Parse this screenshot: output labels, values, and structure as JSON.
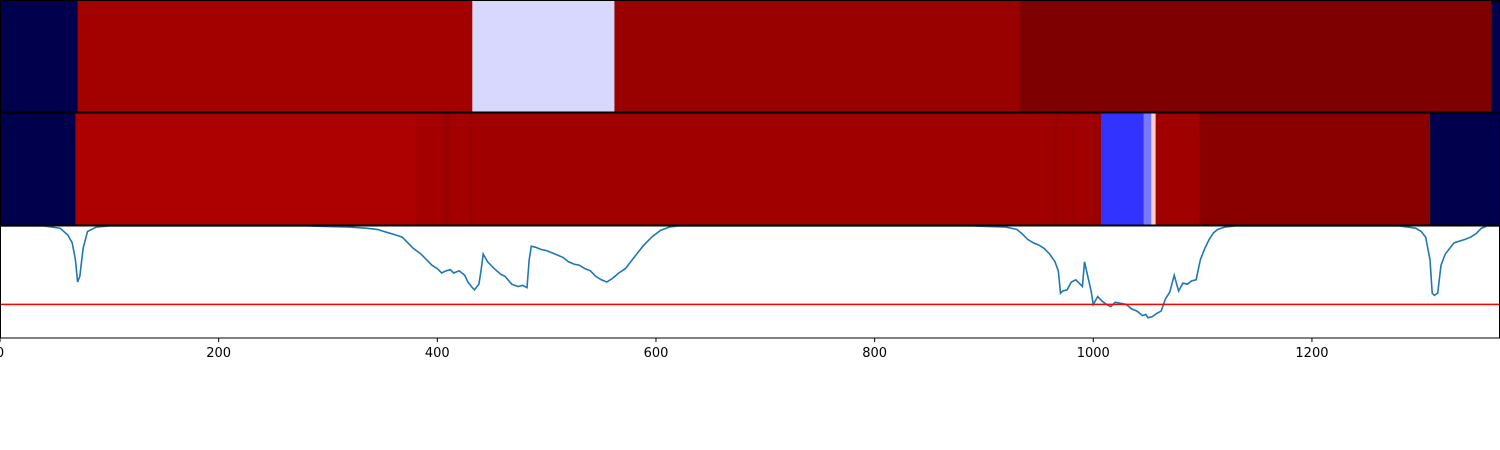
{
  "chart_data": {
    "type": "heatmap",
    "title": "",
    "xlabel": "",
    "ylabel": "",
    "xlim": [
      0,
      1372
    ],
    "x_ticks": [
      "0",
      "200",
      "400",
      "600",
      "800",
      "1000",
      "1200"
    ],
    "panels": [
      {
        "name": "",
        "colormap": "seismic",
        "segments": [
          {
            "start": 0,
            "end": 71,
            "color": "#00004d"
          },
          {
            "start": 71,
            "end": 432,
            "color": "#a30000"
          },
          {
            "start": 432,
            "end": 562,
            "color": "#d8d8ff"
          },
          {
            "start": 562,
            "end": 933,
            "color": "#990000"
          },
          {
            "start": 933,
            "end": 1364,
            "color": "#7f0000"
          },
          {
            "start": 1364,
            "end": 1372,
            "color": "#00004d"
          }
        ]
      },
      {
        "name": "",
        "colormap": "seismic",
        "segments": [
          {
            "start": 0,
            "end": 69,
            "color": "#00004d"
          },
          {
            "start": 69,
            "end": 381,
            "color": "#ad0000"
          },
          {
            "start": 381,
            "end": 406,
            "color": "#a50000"
          },
          {
            "start": 406,
            "end": 411,
            "color": "#990000"
          },
          {
            "start": 411,
            "end": 430,
            "color": "#a30000"
          },
          {
            "start": 430,
            "end": 432,
            "color": "#990000"
          },
          {
            "start": 432,
            "end": 964,
            "color": "#a10000"
          },
          {
            "start": 964,
            "end": 968,
            "color": "#990000"
          },
          {
            "start": 968,
            "end": 980,
            "color": "#a10000"
          },
          {
            "start": 980,
            "end": 983,
            "color": "#990000"
          },
          {
            "start": 983,
            "end": 1000,
            "color": "#a10000"
          },
          {
            "start": 1000,
            "end": 1007,
            "color": "#990000"
          },
          {
            "start": 1007,
            "end": 1046,
            "color": "#3333ff"
          },
          {
            "start": 1046,
            "end": 1053,
            "color": "#7777ff"
          },
          {
            "start": 1053,
            "end": 1057,
            "color": "#ffcccc"
          },
          {
            "start": 1057,
            "end": 1097,
            "color": "#a10000"
          },
          {
            "start": 1097,
            "end": 1308,
            "color": "#8a0000"
          },
          {
            "start": 1308,
            "end": 1372,
            "color": "#00004d"
          }
        ]
      },
      {
        "name": "",
        "series_type": "line",
        "line_color": "#1f77b4",
        "threshold": {
          "value": 0.3,
          "color": "#ff0000"
        },
        "ylim": [
          0,
          1
        ],
        "x": [
          0,
          40,
          55,
          62,
          66,
          69,
          71,
          73,
          76,
          80,
          88,
          100,
          150,
          200,
          280,
          320,
          335,
          345,
          355,
          362,
          368,
          372,
          378,
          385,
          390,
          395,
          400,
          404,
          408,
          412,
          415,
          420,
          425,
          428,
          432,
          434,
          438,
          440,
          442,
          446,
          452,
          458,
          462,
          468,
          474,
          478,
          482,
          484,
          486,
          490,
          495,
          500,
          505,
          510,
          515,
          520,
          525,
          530,
          535,
          540,
          545,
          550,
          555,
          560,
          566,
          572,
          580,
          588,
          596,
          604,
          612,
          620,
          640,
          700,
          800,
          890,
          920,
          930,
          935,
          940,
          945,
          950,
          955,
          960,
          965,
          968,
          970,
          972,
          976,
          980,
          984,
          988,
          990,
          992,
          995,
          998,
          1000,
          1004,
          1008,
          1012,
          1016,
          1020,
          1025,
          1030,
          1035,
          1040,
          1045,
          1048,
          1050,
          1054,
          1058,
          1062,
          1066,
          1070,
          1074,
          1078,
          1082,
          1086,
          1090,
          1094,
          1098,
          1102,
          1106,
          1110,
          1114,
          1120,
          1130,
          1150,
          1200,
          1280,
          1295,
          1300,
          1304,
          1306,
          1308,
          1310,
          1312,
          1315,
          1318,
          1322,
          1330,
          1340,
          1345,
          1350,
          1355,
          1360,
          1372
        ],
        "y": [
          1.0,
          1.0,
          0.98,
          0.92,
          0.85,
          0.7,
          0.5,
          0.55,
          0.8,
          0.95,
          0.99,
          1.0,
          1.0,
          1.0,
          1.0,
          0.99,
          0.98,
          0.97,
          0.94,
          0.92,
          0.9,
          0.86,
          0.8,
          0.75,
          0.7,
          0.65,
          0.62,
          0.58,
          0.6,
          0.61,
          0.58,
          0.6,
          0.56,
          0.5,
          0.45,
          0.43,
          0.48,
          0.6,
          0.75,
          0.68,
          0.62,
          0.57,
          0.55,
          0.48,
          0.46,
          0.47,
          0.45,
          0.7,
          0.82,
          0.81,
          0.79,
          0.78,
          0.76,
          0.74,
          0.72,
          0.68,
          0.66,
          0.65,
          0.62,
          0.6,
          0.55,
          0.52,
          0.5,
          0.53,
          0.58,
          0.62,
          0.72,
          0.82,
          0.9,
          0.96,
          0.99,
          1.0,
          1.0,
          1.0,
          1.0,
          1.0,
          0.99,
          0.97,
          0.93,
          0.88,
          0.85,
          0.83,
          0.8,
          0.75,
          0.68,
          0.6,
          0.4,
          0.42,
          0.43,
          0.5,
          0.52,
          0.48,
          0.46,
          0.68,
          0.55,
          0.42,
          0.3,
          0.37,
          0.33,
          0.3,
          0.28,
          0.32,
          0.31,
          0.3,
          0.26,
          0.24,
          0.2,
          0.21,
          0.18,
          0.19,
          0.22,
          0.24,
          0.35,
          0.41,
          0.56,
          0.42,
          0.49,
          0.48,
          0.51,
          0.52,
          0.7,
          0.8,
          0.88,
          0.94,
          0.97,
          0.99,
          1.0,
          1.0,
          1.0,
          1.0,
          0.98,
          0.95,
          0.9,
          0.8,
          0.7,
          0.4,
          0.38,
          0.4,
          0.65,
          0.75,
          0.85,
          0.88,
          0.9,
          0.93,
          0.98,
          1.0,
          1.0
        ]
      }
    ]
  }
}
